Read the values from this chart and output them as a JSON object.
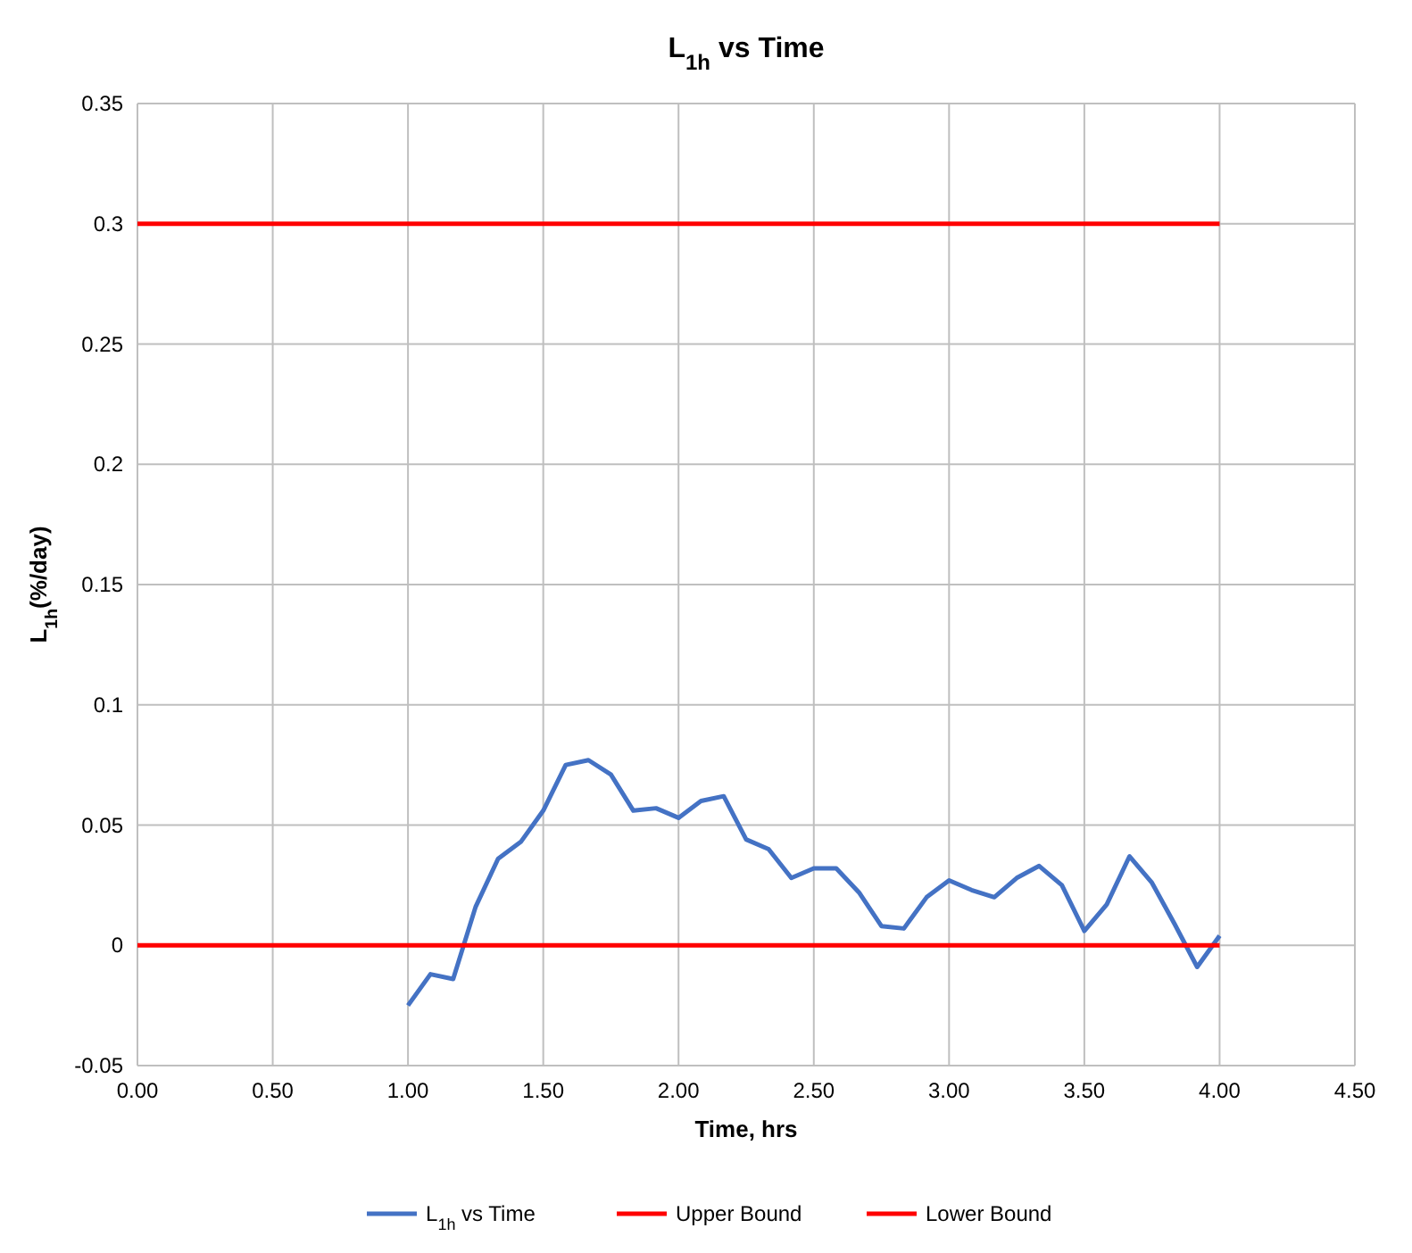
{
  "chart_data": {
    "type": "line",
    "title": "L$_{1h}$ vs Time",
    "xlabel": "Time, hrs",
    "ylabel": "L$_{1h}$(%/day)",
    "xlim": [
      0,
      4.5
    ],
    "xticks": [
      {
        "value": 0,
        "label": "0.00"
      },
      {
        "value": 0.5,
        "label": "0.50"
      },
      {
        "value": 1,
        "label": "1.00"
      },
      {
        "value": 1.5,
        "label": "1.50"
      },
      {
        "value": 2,
        "label": "2.00"
      },
      {
        "value": 2.5,
        "label": "2.50"
      },
      {
        "value": 3,
        "label": "3.00"
      },
      {
        "value": 3.5,
        "label": "3.50"
      },
      {
        "value": 4,
        "label": "4.00"
      },
      {
        "value": 4.5,
        "label": "4.50"
      }
    ],
    "ylim": [
      -0.05,
      0.35
    ],
    "yticks": [
      -0.05,
      0,
      0.05,
      0.1,
      0.15,
      0.2,
      0.25,
      0.3,
      0.35
    ],
    "grid": true,
    "legend": "bottom",
    "marker": "none",
    "line_style": "solid",
    "series": [
      {
        "name": "L$_{1h}$ vs Time",
        "color": "#4472c4",
        "x": [
          1,
          1.083,
          1.167,
          1.25,
          1.333,
          1.417,
          1.5,
          1.583,
          1.667,
          1.75,
          1.833,
          1.917,
          2,
          2.083,
          2.167,
          2.25,
          2.333,
          2.417,
          2.5,
          2.583,
          2.667,
          2.75,
          2.833,
          2.917,
          3,
          3.083,
          3.167,
          3.25,
          3.333,
          3.417,
          3.5,
          3.583,
          3.667,
          3.75,
          3.833,
          3.917,
          4
        ],
        "values": [
          -0.025,
          -0.012,
          -0.014,
          0.016,
          0.036,
          0.043,
          0.056,
          0.075,
          0.077,
          0.071,
          0.056,
          0.057,
          0.053,
          0.06,
          0.062,
          0.044,
          0.04,
          0.028,
          0.032,
          0.032,
          0.022,
          0.008,
          0.007,
          0.02,
          0.027,
          0.023,
          0.02,
          0.028,
          0.033,
          0.025,
          0.006,
          0.017,
          0.037,
          0.026,
          0.009,
          -0.009,
          0.004
        ]
      },
      {
        "name": "Upper Bound",
        "color": "#ff0000",
        "x": [
          0,
          4
        ],
        "values": [
          0.3,
          0.3
        ]
      },
      {
        "name": "Lower Bound",
        "color": "#ff0000",
        "x": [
          0,
          4
        ],
        "values": [
          0,
          0
        ]
      }
    ]
  }
}
